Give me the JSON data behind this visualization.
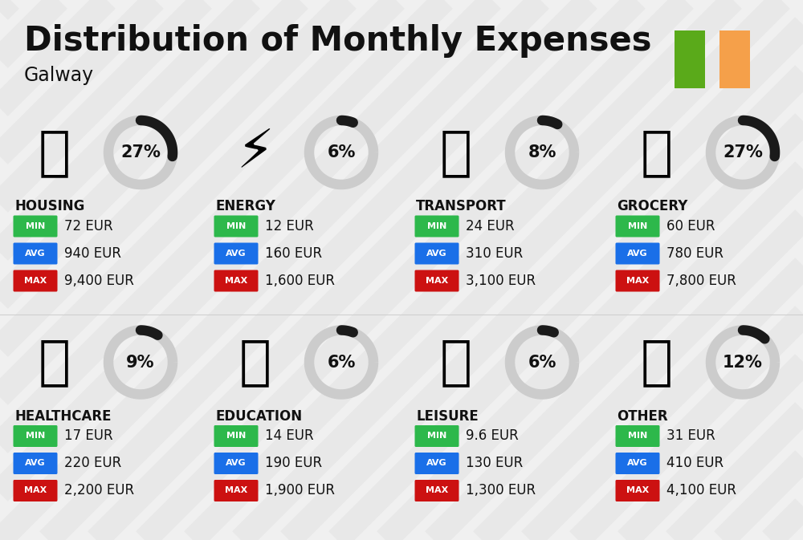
{
  "title": "Distribution of Monthly Expenses",
  "subtitle": "Galway",
  "bg_color": "#f0f0f0",
  "flag_green": "#5aaa1a",
  "flag_orange": "#f5a04a",
  "categories": [
    {
      "name": "HOUSING",
      "pct": 27,
      "min_val": "72 EUR",
      "avg_val": "940 EUR",
      "max_val": "9,400 EUR",
      "col": 0,
      "row": 0
    },
    {
      "name": "ENERGY",
      "pct": 6,
      "min_val": "12 EUR",
      "avg_val": "160 EUR",
      "max_val": "1,600 EUR",
      "col": 1,
      "row": 0
    },
    {
      "name": "TRANSPORT",
      "pct": 8,
      "min_val": "24 EUR",
      "avg_val": "310 EUR",
      "max_val": "3,100 EUR",
      "col": 2,
      "row": 0
    },
    {
      "name": "GROCERY",
      "pct": 27,
      "min_val": "60 EUR",
      "avg_val": "780 EUR",
      "max_val": "7,800 EUR",
      "col": 3,
      "row": 0
    },
    {
      "name": "HEALTHCARE",
      "pct": 9,
      "min_val": "17 EUR",
      "avg_val": "220 EUR",
      "max_val": "2,200 EUR",
      "col": 0,
      "row": 1
    },
    {
      "name": "EDUCATION",
      "pct": 6,
      "min_val": "14 EUR",
      "avg_val": "190 EUR",
      "max_val": "1,900 EUR",
      "col": 1,
      "row": 1
    },
    {
      "name": "LEISURE",
      "pct": 6,
      "min_val": "9.6 EUR",
      "avg_val": "130 EUR",
      "max_val": "1,300 EUR",
      "col": 2,
      "row": 1
    },
    {
      "name": "OTHER",
      "pct": 12,
      "min_val": "31 EUR",
      "avg_val": "410 EUR",
      "max_val": "4,100 EUR",
      "col": 3,
      "row": 1
    }
  ],
  "min_color": "#2db84b",
  "avg_color": "#1a6fe8",
  "max_color": "#cc1111",
  "text_color": "#111111",
  "ring_dark": "#1a1a1a",
  "ring_light": "#cccccc",
  "stripe_color": "#e8e8e8"
}
